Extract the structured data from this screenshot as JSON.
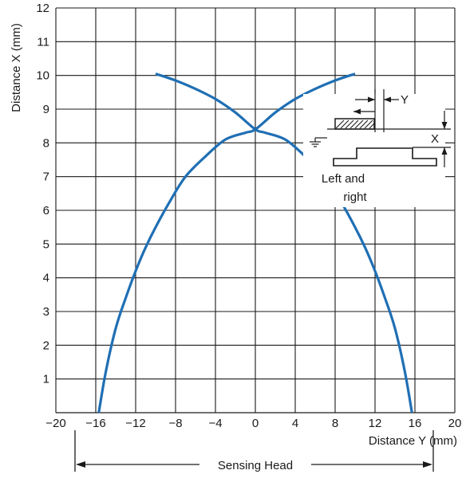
{
  "chart_data": {
    "type": "line",
    "title": "",
    "xlabel": "Distance Y (mm)",
    "ylabel": "Distance X (mm)",
    "xlim": [
      -20,
      20
    ],
    "ylim": [
      0,
      12
    ],
    "x_ticks": [
      -20,
      -16,
      -12,
      -8,
      -4,
      0,
      4,
      8,
      12,
      16,
      20
    ],
    "y_ticks": [
      1,
      2,
      3,
      4,
      5,
      6,
      7,
      8,
      9,
      10,
      11,
      12
    ],
    "grid": true,
    "line_color": "#1f6fb4",
    "series": [
      {
        "x": [
          -15.7,
          -15.0,
          -14.0,
          -13.0,
          -12.0,
          -11.0,
          -10.0,
          -8.5,
          -7.0,
          -5.0,
          -3.0,
          -1.0,
          0.0,
          2.0,
          4.0,
          6.0,
          8.0,
          10.0
        ],
        "y": [
          0.0,
          1.2,
          2.5,
          3.4,
          4.2,
          4.9,
          5.5,
          6.3,
          7.0,
          7.6,
          8.1,
          8.3,
          8.4,
          8.9,
          9.3,
          9.6,
          9.85,
          10.05
        ]
      },
      {
        "x": [
          15.7,
          15.0,
          14.0,
          13.0,
          12.0,
          11.0,
          10.0,
          8.5,
          7.0,
          5.0,
          3.0,
          1.0,
          0.0,
          -2.0,
          -4.0,
          -6.0,
          -8.0,
          -10.0
        ],
        "y": [
          0.0,
          1.2,
          2.5,
          3.4,
          4.2,
          4.9,
          5.5,
          6.3,
          7.0,
          7.6,
          8.1,
          8.3,
          8.4,
          8.9,
          9.3,
          9.6,
          9.85,
          10.05
        ]
      }
    ],
    "inset": {
      "x_symbol": "X",
      "y_symbol": "Y",
      "label_line1": "Left and",
      "label_line2": "right"
    },
    "bottom_bracket_label": "Sensing Head"
  }
}
